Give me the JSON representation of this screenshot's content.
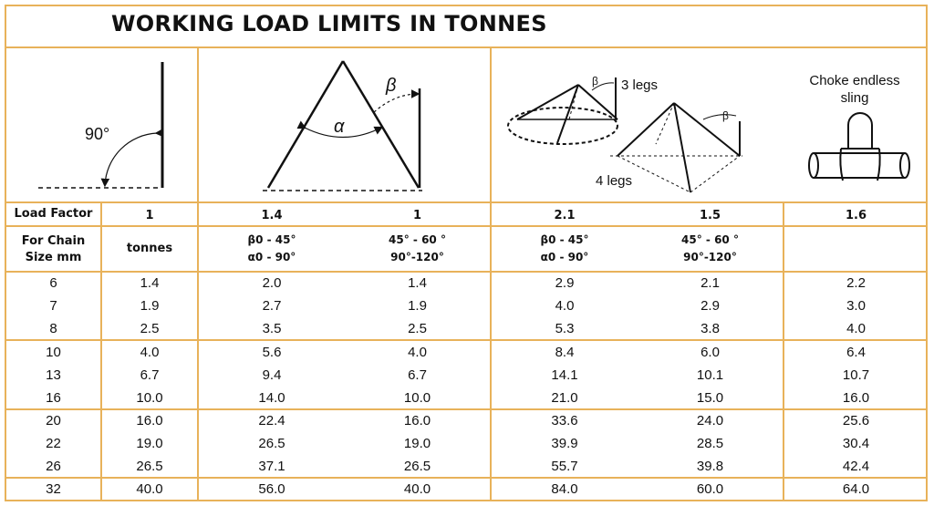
{
  "title": "WORKING LOAD LIMITS IN TONNES",
  "diagrams": {
    "single": {
      "angle_label": "90°"
    },
    "two_legs": {
      "alpha_label": "α",
      "beta_label": "β"
    },
    "multi_legs": {
      "beta_label_1": "β",
      "beta_label_2": "β",
      "three_legs_label": "3 legs",
      "four_legs_label": "4 legs"
    },
    "choke": {
      "label_line1": "Choke endless",
      "label_line2": "sling"
    }
  },
  "load_factor_row": {
    "label": "Load Factor",
    "values": [
      "1",
      "1.4",
      "1",
      "2.1",
      "1.5",
      "1.6"
    ]
  },
  "chain_size_row": {
    "label_line1": "For Chain",
    "label_line2": "Size mm",
    "unit": "tonnes",
    "col2": [
      "β0 - 45°",
      "α0 - 90°"
    ],
    "col3": [
      "45° - 60 °",
      "90°-120°"
    ],
    "col4": [
      "β0 - 45°",
      "α0 - 90°"
    ],
    "col5": [
      "45° - 60 °",
      "90°-120°"
    ]
  },
  "rows": [
    [
      "6",
      "1.4",
      "2.0",
      "1.4",
      "2.9",
      "2.1",
      "2.2"
    ],
    [
      "7",
      "1.9",
      "2.7",
      "1.9",
      "4.0",
      "2.9",
      "3.0"
    ],
    [
      "8",
      "2.5",
      "3.5",
      "2.5",
      "5.3",
      "3.8",
      "4.0"
    ],
    [
      "10",
      "4.0",
      "5.6",
      "4.0",
      "8.4",
      "6.0",
      "6.4"
    ],
    [
      "13",
      "6.7",
      "9.4",
      "6.7",
      "14.1",
      "10.1",
      "10.7"
    ],
    [
      "16",
      "10.0",
      "14.0",
      "10.0",
      "21.0",
      "15.0",
      "16.0"
    ],
    [
      "20",
      "16.0",
      "22.4",
      "16.0",
      "33.6",
      "24.0",
      "25.6"
    ],
    [
      "22",
      "19.0",
      "26.5",
      "19.0",
      "39.9",
      "28.5",
      "30.4"
    ],
    [
      "26",
      "26.5",
      "37.1",
      "26.5",
      "55.7",
      "39.8",
      "42.4"
    ],
    [
      "32",
      "40.0",
      "56.0",
      "40.0",
      "84.0",
      "60.0",
      "64.0"
    ]
  ],
  "colors": {
    "border": "#e8b25a",
    "ink": "#111111"
  }
}
